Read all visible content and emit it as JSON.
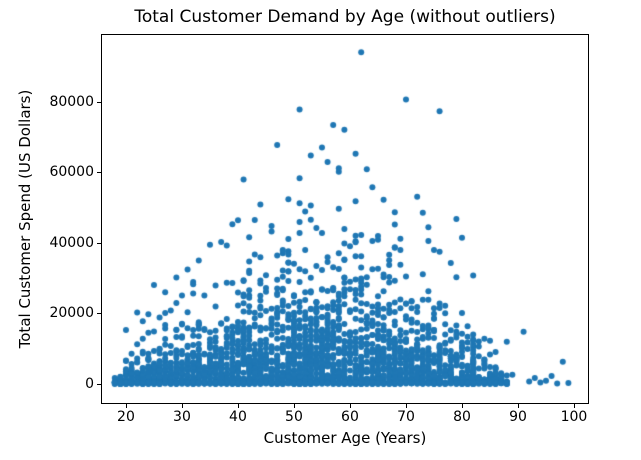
{
  "chart_data": {
    "type": "scatter",
    "title": "Total Customer Demand by Age (without outliers)",
    "xlabel": "Customer Age (Years)",
    "ylabel": "Total Customer Spend (US Dollars)",
    "xticks": [
      20,
      30,
      40,
      50,
      60,
      70,
      80,
      90,
      100
    ],
    "yticks": [
      0,
      20000,
      40000,
      60000,
      80000
    ],
    "xlim": [
      15.54,
      102.68
    ],
    "ylim": [
      -5674,
      99290
    ],
    "grid": false,
    "legend": null,
    "marker": {
      "color": "#1f77b4",
      "radius": 3
    },
    "ages_are_integers": true,
    "notable_points": [
      [
        62,
        94100
      ],
      [
        51,
        77900
      ],
      [
        70,
        80700
      ],
      [
        76,
        77400
      ],
      [
        57,
        73500
      ],
      [
        59,
        72100
      ],
      [
        47,
        67800
      ],
      [
        55,
        67100
      ],
      [
        61,
        65300
      ],
      [
        53,
        64800
      ],
      [
        56,
        63000
      ],
      [
        58,
        61200
      ],
      [
        63,
        60900
      ],
      [
        41,
        58000
      ],
      [
        51,
        58400
      ],
      [
        64,
        55800
      ],
      [
        72,
        53100
      ],
      [
        49,
        52400
      ],
      [
        66,
        52300
      ],
      [
        44,
        50900
      ],
      [
        73,
        48600
      ],
      [
        68,
        48700
      ],
      [
        79,
        46800
      ],
      [
        43,
        46500
      ],
      [
        39,
        45300
      ],
      [
        46,
        44800
      ],
      [
        74,
        44500
      ],
      [
        80,
        41500
      ],
      [
        69,
        41200
      ],
      [
        74,
        40600
      ],
      [
        37,
        40300
      ],
      [
        35,
        39500
      ],
      [
        75,
        38000
      ],
      [
        76,
        37500
      ],
      [
        33,
        35000
      ],
      [
        31,
        32500
      ],
      [
        82,
        30800
      ],
      [
        79,
        30300
      ],
      [
        29,
        30200
      ],
      [
        25,
        28100
      ],
      [
        27,
        26000
      ],
      [
        22,
        20300
      ],
      [
        23,
        17800
      ],
      [
        20,
        15300
      ],
      [
        88,
        12000
      ],
      [
        85,
        12300
      ],
      [
        86,
        9100
      ],
      [
        91,
        14800
      ],
      [
        98,
        6300
      ],
      [
        89,
        2600
      ],
      [
        96,
        2300
      ],
      [
        93,
        1700
      ],
      [
        95,
        900
      ],
      [
        92,
        700
      ],
      [
        94,
        450
      ],
      [
        99,
        300
      ],
      [
        97,
        150
      ]
    ],
    "cloud": {
      "seed": 7,
      "count": 2100,
      "age_min": 18,
      "age_max": 88,
      "uniform_age_fraction": 0.42,
      "exp_rate": 5,
      "envelope": [
        [
          18,
          5000
        ],
        [
          20,
          12000
        ],
        [
          23,
          18000
        ],
        [
          26,
          24000
        ],
        [
          30,
          30000
        ],
        [
          34,
          36000
        ],
        [
          38,
          44000
        ],
        [
          42,
          50000
        ],
        [
          46,
          54000
        ],
        [
          50,
          58000
        ],
        [
          54,
          61000
        ],
        [
          58,
          63000
        ],
        [
          62,
          63000
        ],
        [
          65,
          55000
        ],
        [
          68,
          50000
        ],
        [
          71,
          45000
        ],
        [
          74,
          42000
        ],
        [
          77,
          37000
        ],
        [
          80,
          30000
        ],
        [
          82,
          22000
        ],
        [
          84,
          14000
        ],
        [
          86,
          9000
        ],
        [
          88,
          5000
        ]
      ],
      "bottom_band": {
        "count": 430,
        "max_spend": 500
      }
    }
  }
}
